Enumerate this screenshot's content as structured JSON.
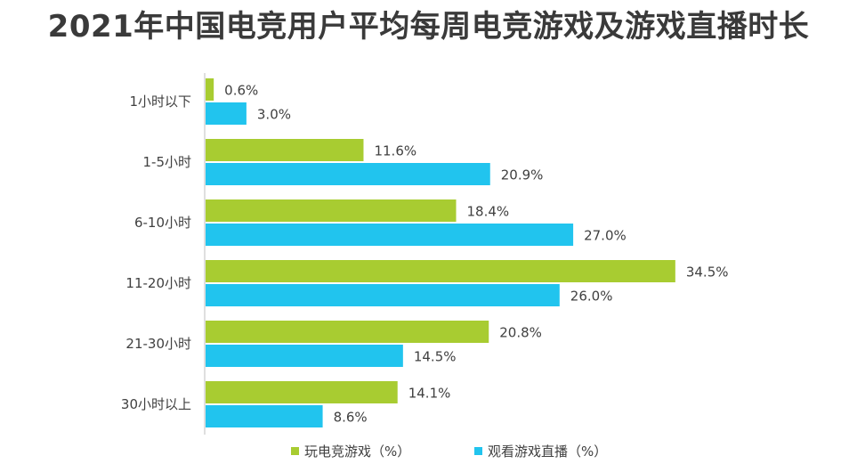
{
  "title": "2021年中国电竞用户平均每周电竞游戏及游戏直播时长",
  "chart_data": {
    "type": "bar",
    "orientation": "horizontal",
    "categories": [
      "1小时以下",
      "1-5小时",
      "6-10小时",
      "11-20小时",
      "21-30小时",
      "30小时以上"
    ],
    "series": [
      {
        "name": "玩电竞游戏（%）",
        "color": "#a8cc31",
        "values": [
          0.6,
          11.6,
          18.4,
          34.5,
          20.8,
          14.1
        ],
        "labels": [
          "0.6%",
          "11.6%",
          "18.4%",
          "34.5%",
          "20.8%",
          "14.1%"
        ]
      },
      {
        "name": "观看游戏直播（%）",
        "color": "#21c4ee",
        "values": [
          3.0,
          20.9,
          27.0,
          26.0,
          14.5,
          8.6
        ],
        "labels": [
          "3.0%",
          "20.9%",
          "27.0%",
          "26.0%",
          "14.5%",
          "8.6%"
        ]
      }
    ],
    "xlim": [
      0,
      40
    ],
    "grid": false,
    "legend": "bottom"
  }
}
